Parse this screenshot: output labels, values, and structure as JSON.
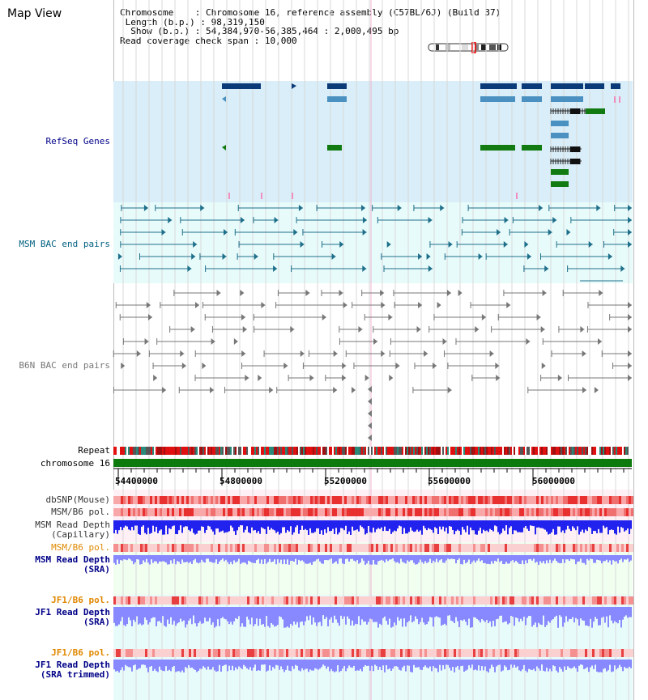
{
  "view_title": "Map View",
  "info": {
    "chromosome_label": "Chromosome",
    "chromosome_value": "Chromosome 16, reference assembly (C57BL/6J) (Build 37)",
    "length_label": "Length (b.p.)",
    "length_value": "98,319,150",
    "show_label": "Show (b.p.)",
    "show_value": "54,384,970-56,385,464 : 2,000,495 bp",
    "coverage_label": "Read coverage check span",
    "coverage_value": "10,000"
  },
  "tracks": {
    "refseq": "RefSeq Genes",
    "msm_bac": "MSM BAC end pairs",
    "b6n_bac": "B6N BAC end pairs",
    "repeat": "Repeat",
    "chromosome": "chromosome 16",
    "dbsnp": "dbSNP(Mouse)",
    "msm_b6_pol_1": "MSM/B6 pol.",
    "msm_read_depth_cap": "MSM Read Depth\n(Capillary)",
    "msm_b6_pol_2": "MSM/B6 pol.",
    "msm_read_depth_sra": "MSM Read Depth\n(SRA)",
    "jf1_b6_pol_1": "JF1/B6 pol.",
    "jf1_read_depth_sra": "JF1 Read Depth\n(SRA)",
    "jf1_b6_pol_2": "JF1/B6 pol.",
    "jf1_read_depth_trim": "JF1 Read Depth\n(SRA trimmed)"
  },
  "axis_ticks": [
    "54400000",
    "54800000",
    "55200000",
    "55600000",
    "56000000"
  ],
  "colors": {
    "refseq_bg": "#d9eef8",
    "msm_bg": "#e8fbfb",
    "gene_dark": "#0a3a78",
    "gene_mid": "#4a90c0",
    "gene_green": "#117a11",
    "msm_line": "#1e6f8a",
    "b6n_line": "#777777",
    "chrom_green": "#0d7a0d",
    "depth_blue": "#2222ee",
    "depth_light": "#8888ff",
    "label_navy": "#000088",
    "label_teal": "#006080",
    "label_orange": "#e08800"
  }
}
